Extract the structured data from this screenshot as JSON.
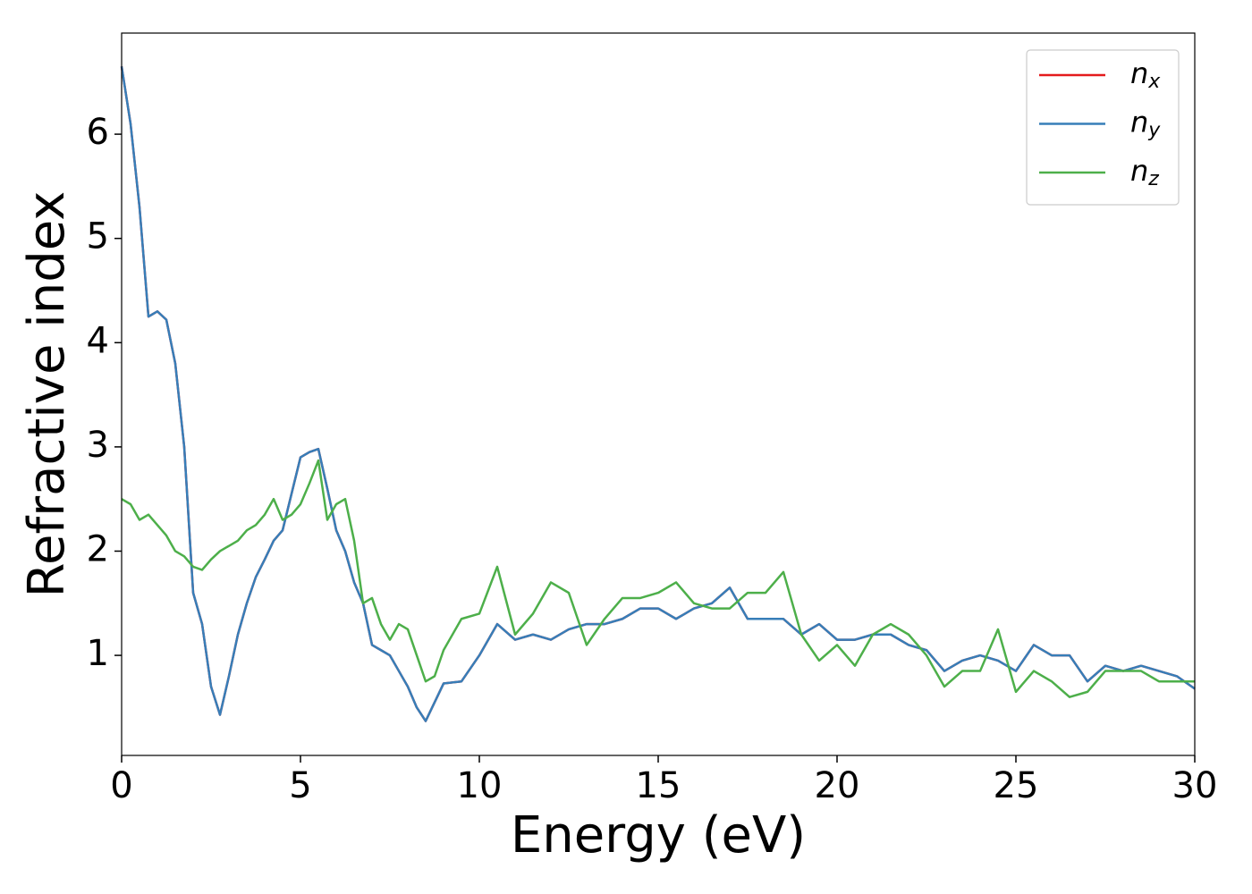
{
  "chart_data": {
    "type": "line",
    "xlabel": "Energy (eV)",
    "ylabel": "Refractive index",
    "x": [
      0,
      0.25,
      0.5,
      0.75,
      1,
      1.25,
      1.5,
      1.75,
      2,
      2.25,
      2.5,
      2.75,
      3,
      3.25,
      3.5,
      3.75,
      4,
      4.25,
      4.5,
      4.75,
      5,
      5.25,
      5.5,
      5.75,
      6,
      6.25,
      6.5,
      6.75,
      7,
      7.25,
      7.5,
      7.75,
      8,
      8.25,
      8.5,
      8.75,
      9,
      9.5,
      10,
      10.5,
      11,
      11.5,
      12,
      12.5,
      13,
      13.5,
      14,
      14.5,
      15,
      15.5,
      16,
      16.5,
      17,
      17.5,
      18,
      18.5,
      19,
      19.5,
      20,
      20.5,
      21,
      21.5,
      22,
      22.5,
      23,
      23.5,
      24,
      24.5,
      25,
      25.5,
      26,
      26.5,
      27,
      27.5,
      28,
      28.5,
      29,
      29.5,
      30
    ],
    "series": [
      {
        "name": "nx",
        "color": "#e41a1c",
        "values": [
          6.65,
          6.1,
          5.3,
          4.25,
          4.3,
          4.22,
          3.8,
          3.0,
          1.6,
          1.3,
          0.7,
          0.43,
          0.8,
          1.2,
          1.5,
          1.75,
          1.92,
          2.1,
          2.2,
          2.55,
          2.9,
          2.95,
          2.98,
          2.6,
          2.2,
          2.0,
          1.7,
          1.5,
          1.1,
          1.05,
          1.0,
          0.85,
          0.7,
          0.5,
          0.37,
          0.55,
          0.73,
          0.75,
          1.0,
          1.3,
          1.15,
          1.2,
          1.15,
          1.25,
          1.3,
          1.3,
          1.35,
          1.45,
          1.45,
          1.35,
          1.45,
          1.5,
          1.65,
          1.35,
          1.35,
          1.35,
          1.2,
          1.3,
          1.15,
          1.15,
          1.2,
          1.2,
          1.1,
          1.05,
          0.85,
          0.95,
          1.0,
          0.95,
          0.85,
          1.1,
          1.0,
          1.0,
          0.75,
          0.9,
          0.85,
          0.9,
          0.85,
          0.8,
          0.68
        ]
      },
      {
        "name": "ny",
        "color": "#377eb8",
        "values": [
          6.65,
          6.1,
          5.3,
          4.25,
          4.3,
          4.22,
          3.8,
          3.0,
          1.6,
          1.3,
          0.7,
          0.43,
          0.8,
          1.2,
          1.5,
          1.75,
          1.92,
          2.1,
          2.2,
          2.55,
          2.9,
          2.95,
          2.98,
          2.6,
          2.2,
          2.0,
          1.7,
          1.5,
          1.1,
          1.05,
          1.0,
          0.85,
          0.7,
          0.5,
          0.37,
          0.55,
          0.73,
          0.75,
          1.0,
          1.3,
          1.15,
          1.2,
          1.15,
          1.25,
          1.3,
          1.3,
          1.35,
          1.45,
          1.45,
          1.35,
          1.45,
          1.5,
          1.65,
          1.35,
          1.35,
          1.35,
          1.2,
          1.3,
          1.15,
          1.15,
          1.2,
          1.2,
          1.1,
          1.05,
          0.85,
          0.95,
          1.0,
          0.95,
          0.85,
          1.1,
          1.0,
          1.0,
          0.75,
          0.9,
          0.85,
          0.9,
          0.85,
          0.8,
          0.68
        ]
      },
      {
        "name": "nz",
        "color": "#4daf4a",
        "values": [
          2.5,
          2.45,
          2.3,
          2.35,
          2.25,
          2.15,
          2.0,
          1.95,
          1.85,
          1.82,
          1.92,
          2.0,
          2.05,
          2.1,
          2.2,
          2.25,
          2.35,
          2.5,
          2.3,
          2.35,
          2.45,
          2.65,
          2.87,
          2.3,
          2.45,
          2.5,
          2.1,
          1.5,
          1.55,
          1.3,
          1.15,
          1.3,
          1.25,
          1.0,
          0.75,
          0.8,
          1.05,
          1.35,
          1.4,
          1.85,
          1.2,
          1.4,
          1.7,
          1.6,
          1.1,
          1.35,
          1.55,
          1.55,
          1.6,
          1.7,
          1.5,
          1.45,
          1.45,
          1.6,
          1.6,
          1.8,
          1.2,
          0.95,
          1.1,
          0.9,
          1.2,
          1.3,
          1.2,
          1.0,
          0.7,
          0.85,
          0.85,
          1.25,
          0.65,
          0.85,
          0.75,
          0.6,
          0.65,
          0.85,
          0.85,
          0.85,
          0.75,
          0.75,
          0.75
        ]
      }
    ],
    "xlim": [
      0,
      30
    ],
    "xticks": [
      0,
      5,
      10,
      15,
      20,
      25,
      30
    ],
    "ylim": [
      0.04,
      6.97
    ],
    "yticks": [
      1,
      2,
      3,
      4,
      5,
      6
    ],
    "legend": "upper right"
  }
}
